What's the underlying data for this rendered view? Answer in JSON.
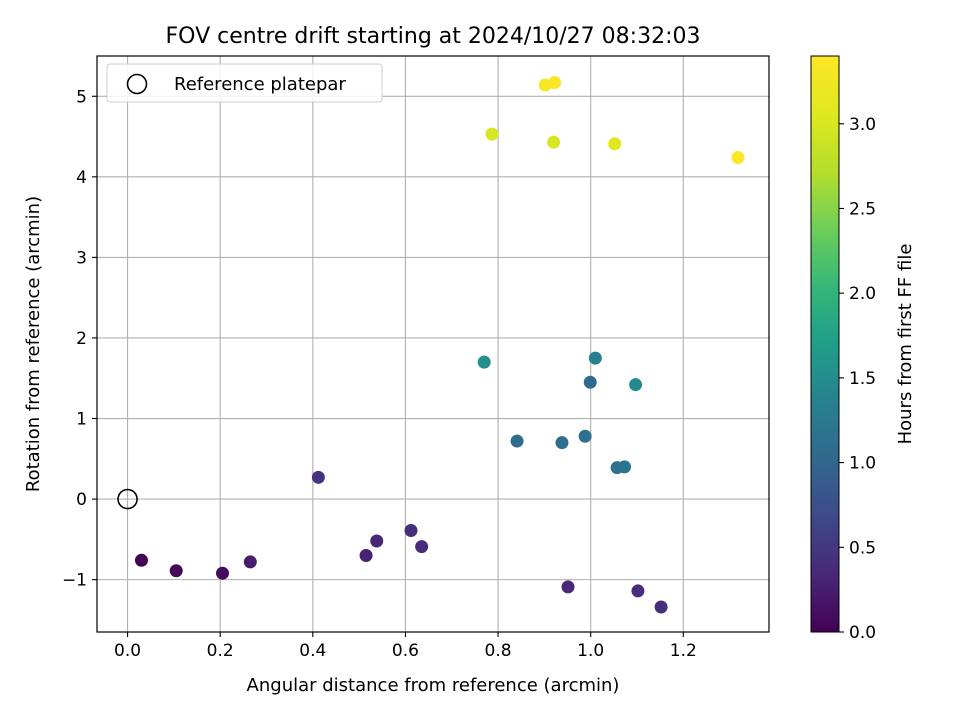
{
  "chart_data": {
    "type": "scatter",
    "title": "FOV centre drift starting at 2024/10/27 08:32:03",
    "xlabel": "Angular distance from reference (arcmin)",
    "ylabel": "Rotation from reference (arcmin)",
    "xlim": [
      -0.066,
      1.385
    ],
    "ylim": [
      -1.65,
      5.5
    ],
    "xticks": [
      0.0,
      0.2,
      0.4,
      0.6,
      0.8,
      1.0,
      1.2
    ],
    "xtick_labels": [
      "0.0",
      "0.2",
      "0.4",
      "0.6",
      "0.8",
      "1.0",
      "1.2"
    ],
    "yticks": [
      -1,
      0,
      1,
      2,
      3,
      4,
      5
    ],
    "ytick_labels": [
      "−1",
      "0",
      "1",
      "2",
      "3",
      "4",
      "5"
    ],
    "grid": true,
    "legend": {
      "placement": "top-left",
      "label": "Reference platepar"
    },
    "reference_point": {
      "x": 0.0,
      "y": 0.0
    },
    "colorbar": {
      "label": "Hours from first FF file",
      "colormap": "viridis",
      "range": [
        0.0,
        3.4
      ],
      "ticks": [
        0.0,
        0.5,
        1.0,
        1.5,
        2.0,
        2.5,
        3.0
      ],
      "tick_labels": [
        "0.0",
        "0.5",
        "1.0",
        "1.5",
        "2.0",
        "2.5",
        "3.0"
      ]
    },
    "points": [
      {
        "x": 0.03,
        "y": -0.76,
        "hours": 0.02
      },
      {
        "x": 0.105,
        "y": -0.89,
        "hours": 0.06
      },
      {
        "x": 0.205,
        "y": -0.92,
        "hours": 0.1
      },
      {
        "x": 0.265,
        "y": -0.78,
        "hours": 0.25
      },
      {
        "x": 0.515,
        "y": -0.7,
        "hours": 0.28
      },
      {
        "x": 0.538,
        "y": -0.52,
        "hours": 0.33
      },
      {
        "x": 0.612,
        "y": -0.39,
        "hours": 0.4
      },
      {
        "x": 0.635,
        "y": -0.59,
        "hours": 0.37
      },
      {
        "x": 0.412,
        "y": 0.27,
        "hours": 0.45
      },
      {
        "x": 0.951,
        "y": -1.09,
        "hours": 0.35
      },
      {
        "x": 1.102,
        "y": -1.14,
        "hours": 0.38
      },
      {
        "x": 1.152,
        "y": -1.34,
        "hours": 0.42
      },
      {
        "x": 0.841,
        "y": 0.72,
        "hours": 1.08
      },
      {
        "x": 0.938,
        "y": 0.7,
        "hours": 1.1
      },
      {
        "x": 0.988,
        "y": 0.78,
        "hours": 1.12
      },
      {
        "x": 1.057,
        "y": 0.39,
        "hours": 1.14
      },
      {
        "x": 1.073,
        "y": 0.4,
        "hours": 1.16
      },
      {
        "x": 0.999,
        "y": 1.45,
        "hours": 1.06
      },
      {
        "x": 1.01,
        "y": 1.75,
        "hours": 1.33
      },
      {
        "x": 1.097,
        "y": 1.42,
        "hours": 1.44
      },
      {
        "x": 0.77,
        "y": 1.7,
        "hours": 1.52
      },
      {
        "x": 0.787,
        "y": 4.53,
        "hours": 2.98
      },
      {
        "x": 0.92,
        "y": 4.43,
        "hours": 3.0
      },
      {
        "x": 1.052,
        "y": 4.41,
        "hours": 3.06
      },
      {
        "x": 0.902,
        "y": 5.14,
        "hours": 3.33
      },
      {
        "x": 0.922,
        "y": 5.17,
        "hours": 3.35
      },
      {
        "x": 1.318,
        "y": 4.24,
        "hours": 3.4
      }
    ]
  }
}
